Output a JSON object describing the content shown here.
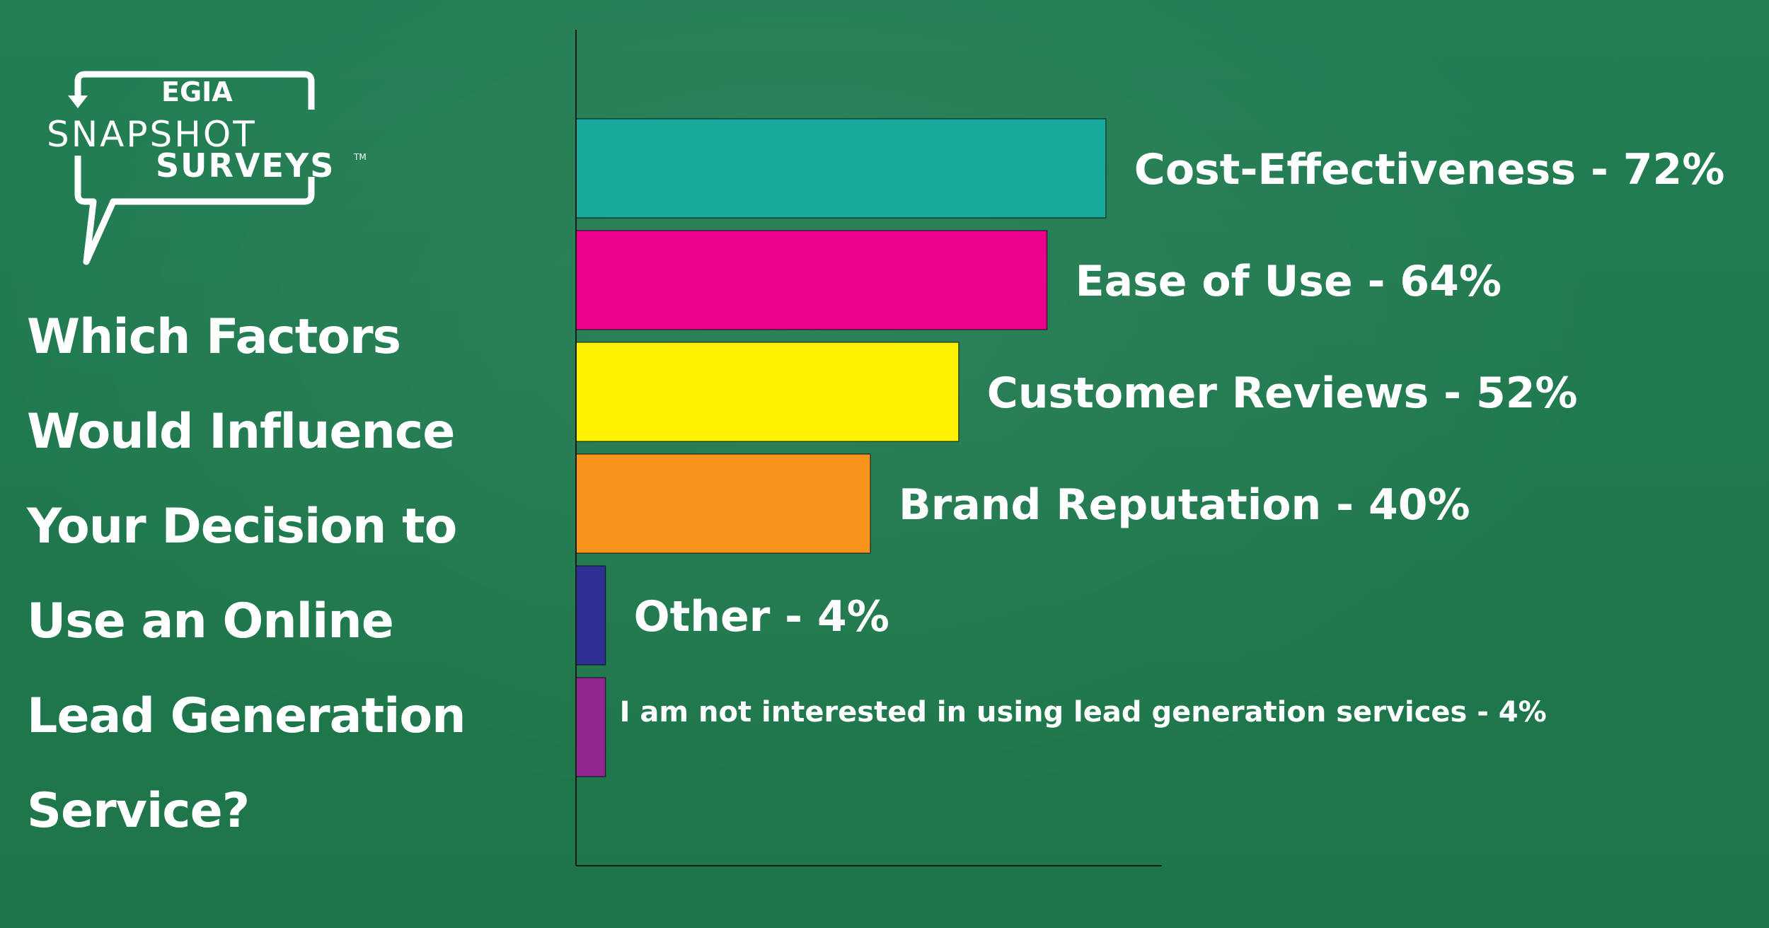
{
  "logo": {
    "brand": "EGIA",
    "line1": "SNAPSHOT",
    "line2": "SURVEYS",
    "tm": "TM"
  },
  "question": "Which Factors\nWould Influence\nYour Decision to\nUse an  Online\nLead Generation\nService?",
  "colors": {
    "background": "#1f7a50",
    "axis": "#1a1a1a",
    "text": "#ffffff"
  },
  "chart_data": {
    "type": "bar",
    "orientation": "horizontal",
    "title": "Which Factors Would Influence Your Decision to Use an  Online Lead Generation Service?",
    "xlabel": "",
    "ylabel": "",
    "unit": "%",
    "xlim": [
      0,
      100
    ],
    "grid": false,
    "legend": "none",
    "categories": [
      "Cost-Effectiveness",
      "Ease of Use",
      "Customer Reviews",
      "Brand Reputation",
      "Other",
      "I am not interested in using lead generation services"
    ],
    "values": [
      72,
      64,
      52,
      40,
      4,
      4
    ],
    "labels": [
      "Cost-Effectiveness - 72%",
      "Ease of Use - 64%",
      "Customer Reviews - 52%",
      "Brand Reputation - 40%",
      "Other - 4%",
      "I am not interested in using lead generation services - 4%"
    ],
    "bar_colors": [
      "#17aa9c",
      "#ec008c",
      "#fff200",
      "#f7941d",
      "#2e3192",
      "#92278f"
    ],
    "label_sizes": [
      "large",
      "large",
      "large",
      "large",
      "large",
      "small"
    ]
  }
}
